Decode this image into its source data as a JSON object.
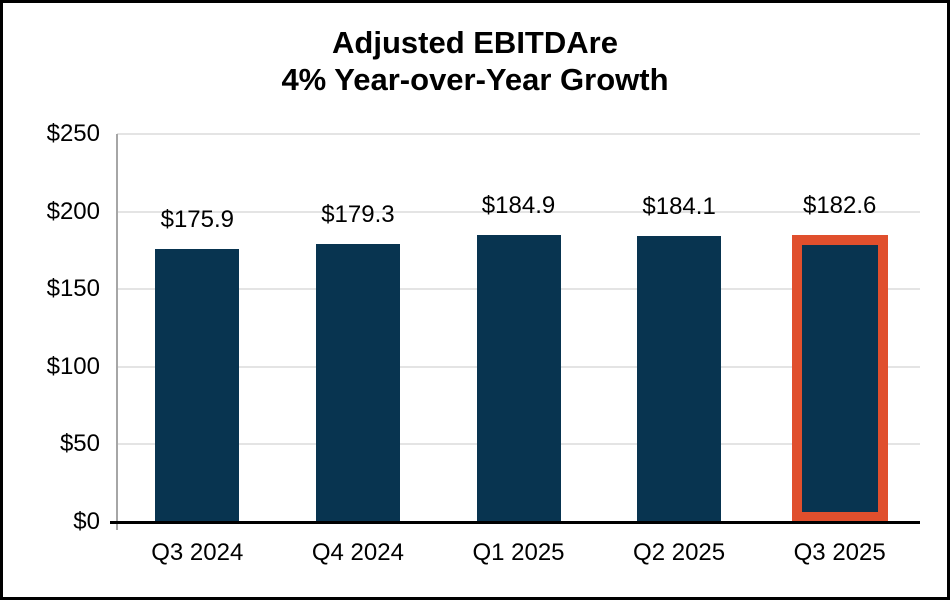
{
  "chart_data": {
    "type": "bar",
    "title": "Adjusted EBITDAre",
    "subtitle": "4% Year-over-Year Growth",
    "categories": [
      "Q3 2024",
      "Q4 2024",
      "Q1 2025",
      "Q2 2025",
      "Q3 2025"
    ],
    "values": [
      175.9,
      179.3,
      184.9,
      184.1,
      182.6
    ],
    "value_labels": [
      "$175.9",
      "$179.3",
      "$184.9",
      "$184.1",
      "$182.6"
    ],
    "y_tick_values": [
      0,
      50,
      100,
      150,
      200,
      250
    ],
    "y_tick_labels": [
      "$0",
      "$50",
      "$100",
      "$150",
      "$200",
      "$250"
    ],
    "ylim": [
      0,
      250
    ],
    "grid": true,
    "legend": "none",
    "xlabel": "",
    "ylabel": "",
    "bar_color": "#083450",
    "highlight": {
      "category": "Q3 2025",
      "index": 4,
      "border_color": "#E04F2D"
    }
  }
}
